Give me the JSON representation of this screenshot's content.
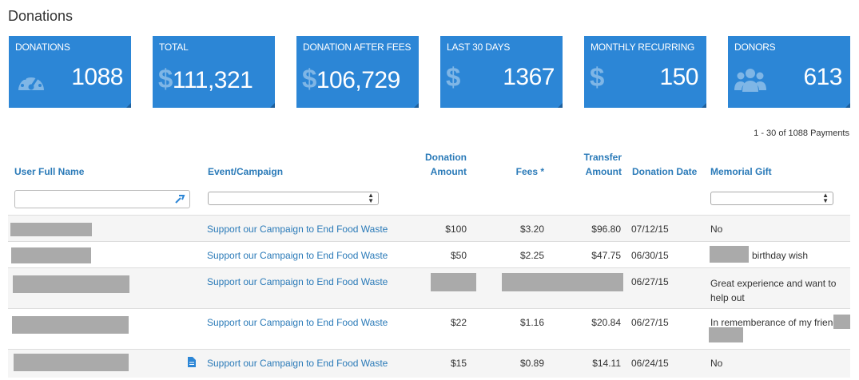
{
  "page": {
    "title": "Donations"
  },
  "stats": [
    {
      "label": "DONATIONS",
      "value": "1088",
      "icon": "dashboard-gauge-icon"
    },
    {
      "label": "TOTAL",
      "value": "111,321",
      "icon": "dollar-icon",
      "prefix": "$"
    },
    {
      "label": "DONATION AFTER FEES",
      "value": "106,729",
      "icon": "dollar-icon",
      "prefix": "$"
    },
    {
      "label": "LAST 30 DAYS",
      "value": "1367",
      "icon": "dollar-icon",
      "prefix": "$"
    },
    {
      "label": "MONTHLY RECURRING",
      "value": "150",
      "icon": "dollar-icon",
      "prefix": "$"
    },
    {
      "label": "DONORS",
      "value": "613",
      "icon": "users-group-icon"
    }
  ],
  "pager": {
    "text": "1 - 30 of 1088 Payments"
  },
  "columns": {
    "user": "User Full Name",
    "event": "Event/Campaign",
    "donation_1": "Donation",
    "donation_2": "Amount",
    "fees": "Fees *",
    "transfer_1": "Transfer",
    "transfer_2": "Amount",
    "date": "Donation Date",
    "memorial": "Memorial Gift"
  },
  "rows": [
    {
      "event": "Support our Campaign to End Food Waste",
      "donation": "$100",
      "fees": "$3.20",
      "transfer": "$96.80",
      "date": "07/12/15",
      "memorial": "No"
    },
    {
      "event": "Support our Campaign to End Food Waste",
      "donation": "$50",
      "fees": "$2.25",
      "transfer": "$47.75",
      "date": "06/30/15",
      "memorial": "birthday wish"
    },
    {
      "event": "Support our Campaign to End Food Waste",
      "donation": "",
      "fees": "",
      "transfer": "",
      "date": "06/27/15",
      "memorial_1": "Great experience and want to",
      "memorial_2": "help out"
    },
    {
      "event": "Support our Campaign to End Food Waste",
      "donation": "$22",
      "fees": "$1.16",
      "transfer": "$20.84",
      "date": "06/27/15",
      "memorial": "In rememberance of my friend"
    },
    {
      "event": "Support our Campaign to End Food Waste",
      "donation": "$15",
      "fees": "$0.89",
      "transfer": "$14.11",
      "date": "06/24/15",
      "memorial": "No"
    }
  ],
  "colors": {
    "accent": "#2c86d6",
    "link": "#2a7ab8",
    "redaction": "#aaaaaa"
  }
}
